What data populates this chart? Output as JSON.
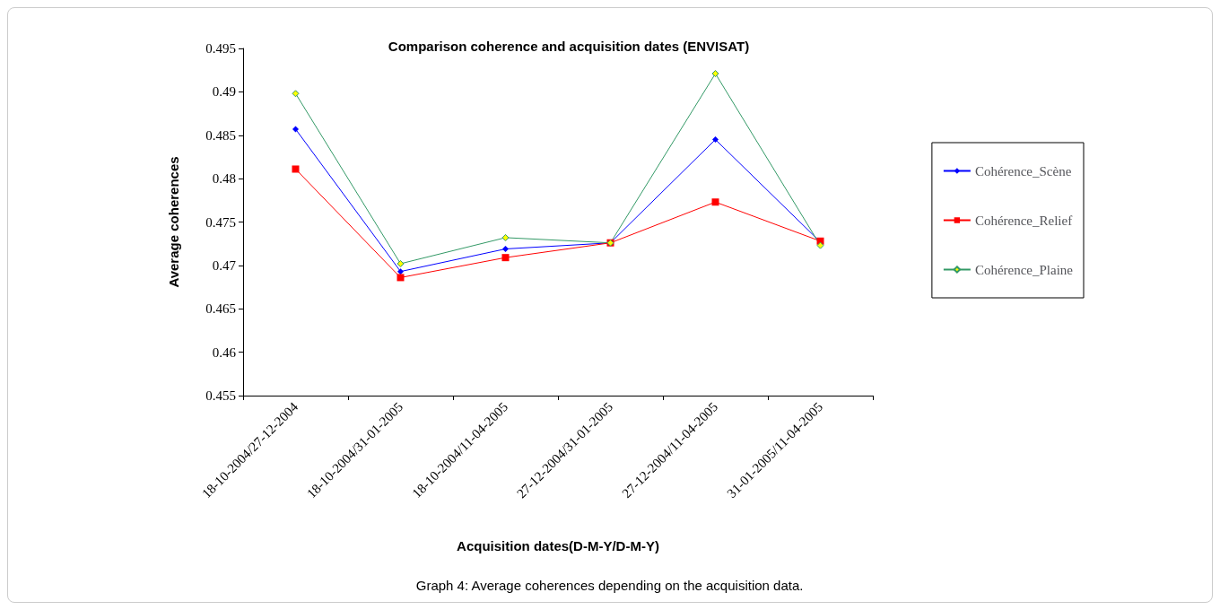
{
  "chart_data": {
    "type": "line",
    "title": "Comparison coherence and acquisition dates (ENVISAT)",
    "xlabel": "Acquisition dates(D-M-Y/D-M-Y)",
    "ylabel": "Average coherences",
    "categories": [
      "18-10-2004/27-12-2004",
      "18-10-2004/31-01-2005",
      "18-10-2004/11-04-2005",
      "27-12-2004/31-01-2005",
      "27-12-2004/11-04-2005",
      "31-01-2005/11-04-2005"
    ],
    "series": [
      {
        "name": "Cohérence_Scène",
        "color": "#0000ff",
        "marker": "diamond",
        "values": [
          0.4857,
          0.4693,
          0.4719,
          0.4726,
          0.4845,
          0.4727
        ]
      },
      {
        "name": "Cohérence_Relief",
        "color": "#ff0000",
        "marker": "square",
        "values": [
          0.4811,
          0.4686,
          0.4709,
          0.4726,
          0.4773,
          0.4728
        ]
      },
      {
        "name": "Cohérence_Plaine",
        "color": "#339966",
        "marker": "diamond",
        "values": [
          0.4898,
          0.4702,
          0.4732,
          0.4726,
          0.4921,
          0.4723
        ]
      }
    ],
    "ylim": [
      0.455,
      0.495
    ],
    "yticks": [
      0.455,
      0.46,
      0.465,
      0.47,
      0.475,
      0.48,
      0.485,
      0.49,
      0.495
    ],
    "grid": false,
    "legend": "right",
    "line_style": "solid",
    "annotations": [
      "Graph 4: Average coherences depending on the acquisition data."
    ]
  }
}
